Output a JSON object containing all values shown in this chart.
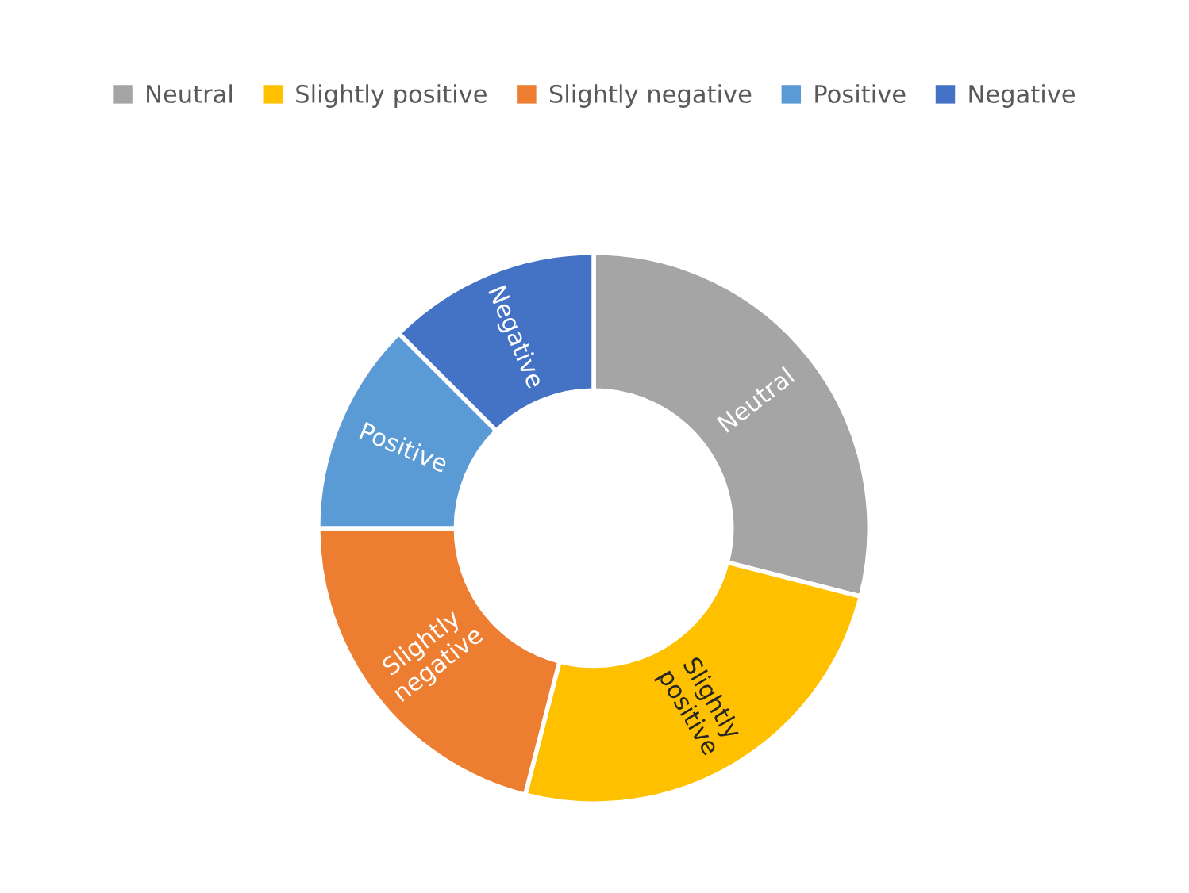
{
  "chart_data": {
    "type": "donut",
    "categories": [
      "Neutral",
      "Slightly positive",
      "Slightly negative",
      "Positive",
      "Negative"
    ],
    "values": [
      29,
      25,
      21,
      12.5,
      12.5
    ],
    "colors": [
      "#a5a5a5",
      "#ffc000",
      "#ed7d31",
      "#5b9bd5",
      "#4472c4"
    ],
    "value_labels": [
      "Neutral",
      "Slightly positive",
      "Slightly negative",
      "Positive",
      "Negative"
    ],
    "legend": "top"
  }
}
